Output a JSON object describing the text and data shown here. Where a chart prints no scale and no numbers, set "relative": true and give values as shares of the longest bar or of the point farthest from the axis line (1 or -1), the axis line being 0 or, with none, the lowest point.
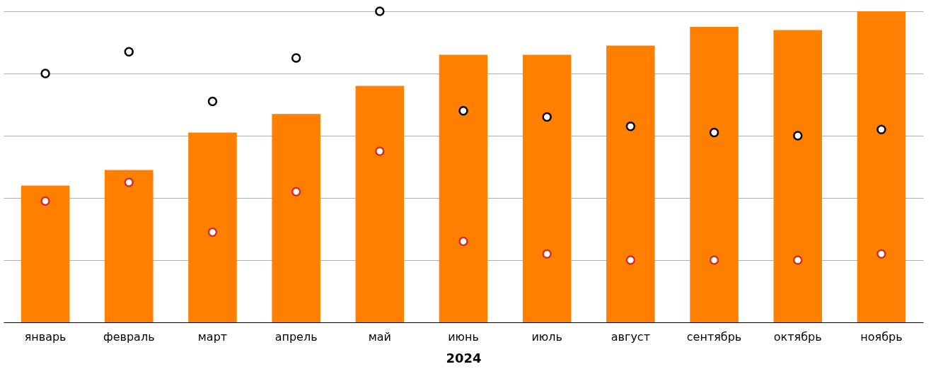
{
  "chart_data": {
    "type": "bar",
    "xlabel": "2024",
    "relative": true,
    "grid": "y",
    "marker": "circle",
    "categories": [
      "январь",
      "февраль",
      "март",
      "апрель",
      "май",
      "июнь",
      "июль",
      "август",
      "сентябрь",
      "октябрь",
      "ноябрь"
    ],
    "series": [
      {
        "color": "#ff8000",
        "values": [
          0.44,
          0.49,
          0.61,
          0.67,
          0.76,
          0.86,
          0.86,
          0.89,
          0.95,
          0.94,
          1.0
        ]
      },
      {
        "type": "scatter",
        "color": "#000000",
        "values": [
          0.8,
          0.87,
          0.71,
          0.85,
          1.0,
          0.68,
          0.66,
          0.63,
          0.61,
          0.6,
          0.62
        ]
      },
      {
        "type": "scatter",
        "color": "#d03030",
        "values": [
          0.39,
          0.45,
          0.29,
          0.42,
          0.55,
          0.26,
          0.22,
          0.2,
          0.2,
          0.2,
          0.22
        ]
      }
    ]
  }
}
